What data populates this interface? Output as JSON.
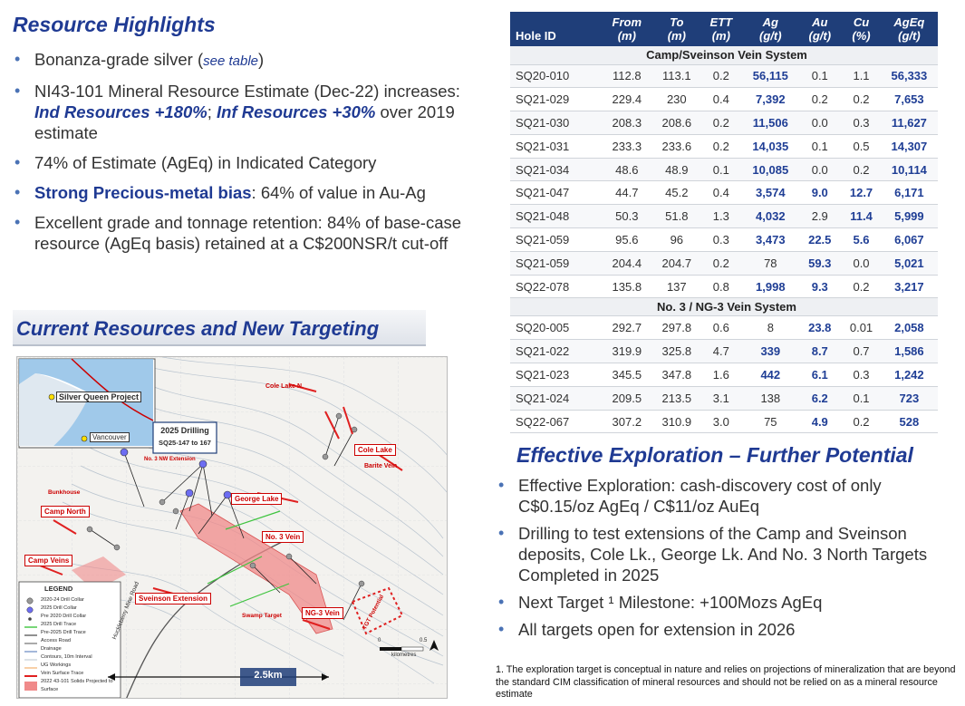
{
  "resource_highlights": {
    "title": "Resource Highlights",
    "b1_pre": "Bonanza-grade silver (",
    "b1_link": "see table",
    "b1_post": ")",
    "b2_pre": "NI43-101 Mineral Resource Estimate (Dec-22) increases:",
    "b2_ind": "Ind Resources +180%",
    "b2_sep": "; ",
    "b2_inf": "Inf Resources +30%",
    "b2_post": " over 2019 estimate",
    "b3": "74% of Estimate (AgEq) in Indicated Category",
    "b4_bold": "Strong Precious-metal bias",
    "b4_post": ": 64% of value in Au-Ag",
    "b5": "Excellent grade and tonnage retention: 84% of base-case resource (AgEq basis) retained at a C$200NSR/t cut-off"
  },
  "current_resources": {
    "title": "Current Resources and New Targeting"
  },
  "map": {
    "inset_project": "Silver Queen Project",
    "inset_city": "Vancouver",
    "drilling_label_1": "2025 Drilling",
    "drilling_label_2": "SQ25-147 to 167",
    "labels": {
      "cole_lake_n": "Cole Lake N.",
      "cole_lake": "Cole Lake",
      "barite_vein": "Barite Vein",
      "no3_nw_ext": "No. 3 NW Extension",
      "bunkhouse": "Bunkhouse",
      "camp_north": "Camp North",
      "george_lake": "George Lake",
      "no3_vein": "No. 3 Vein",
      "camp_veins": "Camp Veins",
      "sveinson_ext": "Sveinson Extension",
      "swamp_target": "Swamp Target",
      "ng3_vein": "NG-3 Vein",
      "tgt_potential": "TGT Potential",
      "road": "Huckleberry Mine Road"
    },
    "legend": {
      "title": "LEGEND",
      "items": [
        "2020-24 Drill Collar",
        "2025 Drill Collar",
        "Pre 2020 Drill Collar",
        "2025 Drill Trace",
        "Pre-2025 Drill Trace",
        "Access Road",
        "Drainage",
        "Contours, 10m Interval",
        "UG Workings",
        "Vein Surface Trace",
        "2022 43-101 Solids Projected to Surface"
      ]
    },
    "scale_label": "2.5km",
    "scale_unit": "kilometres",
    "scale_zero": "0",
    "scale_max": "0.5"
  },
  "table": {
    "headers": [
      {
        "l1": "",
        "l2": "Hole ID"
      },
      {
        "l1": "From",
        "l2": "(m)"
      },
      {
        "l1": "To",
        "l2": "(m)"
      },
      {
        "l1": "ETT",
        "l2": "(m)"
      },
      {
        "l1": "Ag",
        "l2": "(g/t)"
      },
      {
        "l1": "Au",
        "l2": "(g/t)"
      },
      {
        "l1": "Cu",
        "l2": "(%)"
      },
      {
        "l1": "AgEq",
        "l2": "(g/t)"
      }
    ],
    "section1": "Camp/Sveinson Vein System",
    "rows1": [
      [
        "SQ20-010",
        "112.8",
        "113.1",
        "0.2",
        "56,115",
        "0.1",
        "1.1",
        "56,333"
      ],
      [
        "SQ21-029",
        "229.4",
        "230",
        "0.4",
        "7,392",
        "0.2",
        "0.2",
        "7,653"
      ],
      [
        "SQ21-030",
        "208.3",
        "208.6",
        "0.2",
        "11,506",
        "0.0",
        "0.3",
        "11,627"
      ],
      [
        "SQ21-031",
        "233.3",
        "233.6",
        "0.2",
        "14,035",
        "0.1",
        "0.5",
        "14,307"
      ],
      [
        "SQ21-034",
        "48.6",
        "48.9",
        "0.1",
        "10,085",
        "0.0",
        "0.2",
        "10,114"
      ],
      [
        "SQ21-047",
        "44.7",
        "45.2",
        "0.4",
        "3,574",
        "9.0",
        "12.7",
        "6,171"
      ],
      [
        "SQ21-048",
        "50.3",
        "51.8",
        "1.3",
        "4,032",
        "2.9",
        "11.4",
        "5,999"
      ],
      [
        "SQ21-059",
        "95.6",
        "96",
        "0.3",
        "3,473",
        "22.5",
        "5.6",
        "6,067"
      ],
      [
        "SQ21-059",
        "204.4",
        "204.7",
        "0.2",
        "78",
        "59.3",
        "0.0",
        "5,021"
      ],
      [
        "SQ22-078",
        "135.8",
        "137",
        "0.8",
        "1,998",
        "9.3",
        "0.2",
        "3,217"
      ]
    ],
    "hl1": [
      [
        4,
        7
      ],
      [
        4,
        7
      ],
      [
        4,
        7
      ],
      [
        4,
        7
      ],
      [
        4,
        7
      ],
      [
        4,
        5,
        6,
        7
      ],
      [
        4,
        6,
        7
      ],
      [
        4,
        5,
        6,
        7
      ],
      [
        5,
        7
      ],
      [
        4,
        5,
        7
      ]
    ],
    "section2": "No. 3 / NG-3 Vein System",
    "rows2": [
      [
        "SQ20-005",
        "292.7",
        "297.8",
        "0.6",
        "8",
        "23.8",
        "0.01",
        "2,058"
      ],
      [
        "SQ21-022",
        "319.9",
        "325.8",
        "4.7",
        "339",
        "8.7",
        "0.7",
        "1,586"
      ],
      [
        "SQ21-023",
        "345.5",
        "347.8",
        "1.6",
        "442",
        "6.1",
        "0.3",
        "1,242"
      ],
      [
        "SQ21-024",
        "209.5",
        "213.5",
        "3.1",
        "138",
        "6.2",
        "0.1",
        "723"
      ],
      [
        "SQ22-067",
        "307.2",
        "310.9",
        "3.0",
        "75",
        "4.9",
        "0.2",
        "528"
      ]
    ],
    "hl2": [
      [
        5,
        7
      ],
      [
        4,
        5,
        7
      ],
      [
        4,
        5,
        7
      ],
      [
        5,
        7
      ],
      [
        5,
        7
      ]
    ]
  },
  "exploration": {
    "title": "Effective Exploration – Further Potential",
    "items": [
      "Effective Exploration: cash-discovery cost of only C$0.15/oz AgEq / C$11/oz AuEq",
      "Drilling to test extensions of the Camp and Sveinson deposits, Cole Lk., George Lk. And No. 3 North Targets Completed in 2025",
      "Next Target ¹ Milestone: +100Mozs AgEq",
      "All targets open for extension in 2026"
    ]
  },
  "footnote": "1. The exploration target is conceptual in nature and relies on projections of mineralization that are beyond the standard CIM classification of mineral resources and should not be relied on as a mineral resource estimate",
  "colors": {
    "title_blue": "#1f3a93",
    "table_header": "#1f3e79",
    "highlight_blue": "#1f3e95",
    "vein_red": "#e02020",
    "solid_pink": "#f08a8a"
  }
}
